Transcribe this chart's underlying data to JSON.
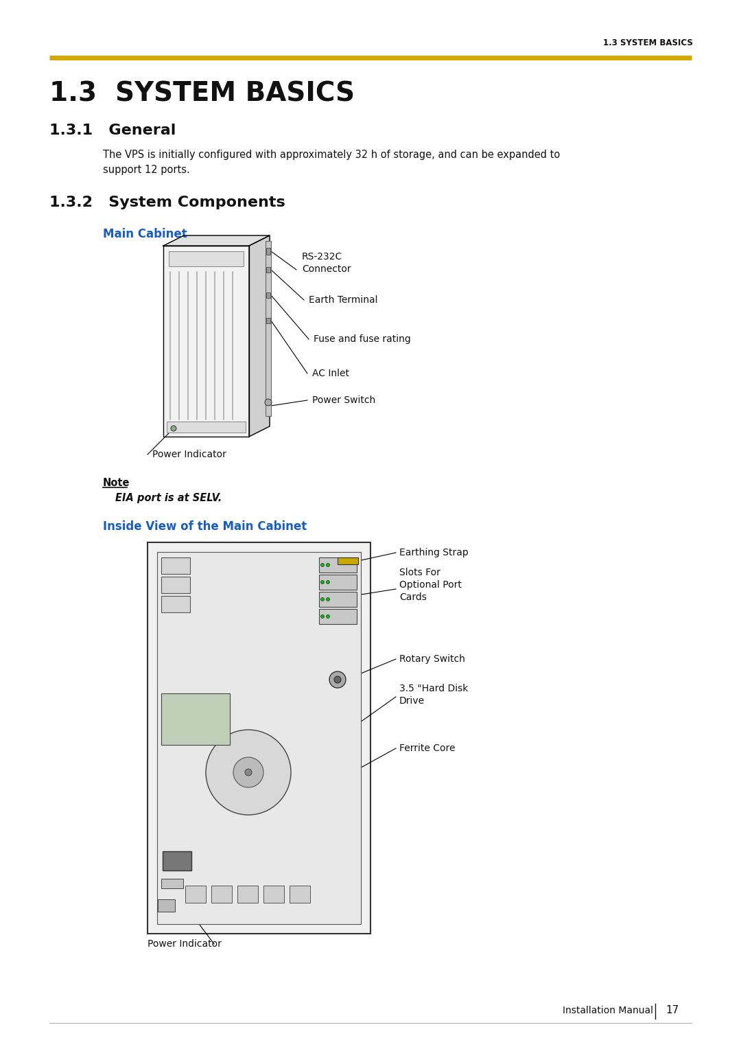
{
  "page_bg": "#ffffff",
  "header_text": "1.3 SYSTEM BASICS",
  "header_line_color": "#D4A800",
  "title_main": "1.3   SYSTEM BASICS",
  "title_sub1": "1.3.1   General",
  "title_sub2": "1.3.2   System Components",
  "body_text": "The VPS is initially configured with approximately 32 h of storage, and can be expanded to\nsupport 12 ports.",
  "main_cabinet_label": "Main Cabinet",
  "blue_color": "#1a5eb8",
  "inside_view_label": "Inside View of the Main Cabinet",
  "note_label": "Note",
  "note_italic_text": "EIA port is at SELV.",
  "footer_text": "Installation Manual",
  "footer_page": "17",
  "text_color": "#111111"
}
